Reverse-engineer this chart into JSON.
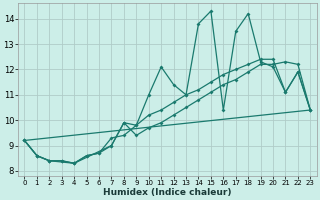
{
  "xlabel": "Humidex (Indice chaleur)",
  "bg_color": "#cceee8",
  "grid_color": "#b0ccc8",
  "line_color": "#1a7a6e",
  "xlim": [
    -0.5,
    23.5
  ],
  "ylim": [
    7.8,
    14.6
  ],
  "yticks": [
    8,
    9,
    10,
    11,
    12,
    13,
    14
  ],
  "xticks": [
    0,
    1,
    2,
    3,
    4,
    5,
    6,
    7,
    8,
    9,
    10,
    11,
    12,
    13,
    14,
    15,
    16,
    17,
    18,
    19,
    20,
    21,
    22,
    23
  ],
  "series1": [
    [
      0,
      9.2
    ],
    [
      1,
      8.6
    ],
    [
      2,
      8.4
    ],
    [
      3,
      8.4
    ],
    [
      4,
      8.3
    ],
    [
      5,
      8.6
    ],
    [
      6,
      8.7
    ],
    [
      7,
      9.0
    ],
    [
      8,
      9.9
    ],
    [
      9,
      9.8
    ],
    [
      10,
      11.0
    ],
    [
      11,
      12.1
    ],
    [
      12,
      11.4
    ],
    [
      13,
      11.0
    ],
    [
      14,
      13.8
    ],
    [
      15,
      14.3
    ],
    [
      16,
      10.4
    ],
    [
      17,
      13.5
    ],
    [
      18,
      14.2
    ],
    [
      19,
      12.3
    ],
    [
      20,
      12.1
    ],
    [
      21,
      11.1
    ],
    [
      22,
      11.9
    ],
    [
      23,
      10.4
    ]
  ],
  "series2": [
    [
      0,
      9.2
    ],
    [
      1,
      8.6
    ],
    [
      2,
      8.4
    ],
    [
      4,
      8.3
    ],
    [
      7,
      9.0
    ],
    [
      8,
      9.9
    ],
    [
      9,
      9.4
    ],
    [
      10,
      9.7
    ],
    [
      11,
      9.9
    ],
    [
      12,
      10.2
    ],
    [
      13,
      10.5
    ],
    [
      14,
      10.8
    ],
    [
      15,
      11.1
    ],
    [
      16,
      11.4
    ],
    [
      17,
      11.6
    ],
    [
      18,
      11.9
    ],
    [
      19,
      12.2
    ],
    [
      20,
      12.2
    ],
    [
      21,
      12.3
    ],
    [
      22,
      12.2
    ],
    [
      23,
      10.4
    ]
  ],
  "series3": [
    [
      0,
      9.2
    ],
    [
      1,
      8.6
    ],
    [
      2,
      8.4
    ],
    [
      3,
      8.4
    ],
    [
      4,
      8.3
    ],
    [
      5,
      8.6
    ],
    [
      6,
      8.7
    ],
    [
      7,
      9.3
    ],
    [
      8,
      9.4
    ],
    [
      9,
      9.8
    ],
    [
      10,
      10.2
    ],
    [
      11,
      10.4
    ],
    [
      12,
      10.7
    ],
    [
      13,
      11.0
    ],
    [
      14,
      11.2
    ],
    [
      15,
      11.5
    ],
    [
      16,
      11.8
    ],
    [
      17,
      12.0
    ],
    [
      18,
      12.2
    ],
    [
      19,
      12.4
    ],
    [
      20,
      12.4
    ],
    [
      21,
      11.1
    ],
    [
      22,
      11.9
    ],
    [
      23,
      10.4
    ]
  ],
  "series4_x": [
    0,
    23
  ],
  "series4_y": [
    9.2,
    10.4
  ]
}
